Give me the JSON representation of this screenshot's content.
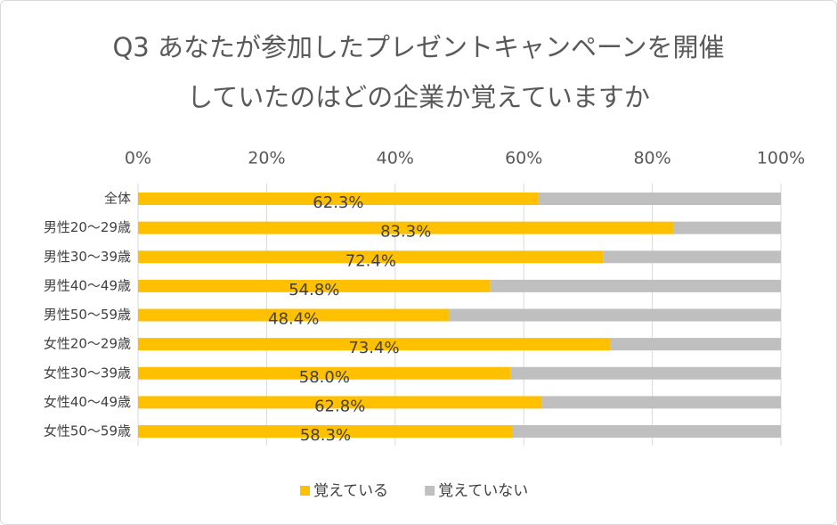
{
  "chart_data": {
    "type": "stacked-bar-horizontal",
    "title": [
      "Q3 あなたが参加したプレゼントキャンペーンを開催",
      "していたのはどの企業か覚えていますか"
    ],
    "categories": [
      "全体",
      "男性20～29歳",
      "男性30～39歳",
      "男性40～49歳",
      "男性50～59歳",
      "女性20～29歳",
      "女性30～39歳",
      "女性40～49歳",
      "女性50～59歳"
    ],
    "series": [
      {
        "name": "覚えている",
        "color": "#FFC000",
        "values": [
          62.3,
          83.3,
          72.4,
          54.8,
          48.4,
          73.4,
          58.0,
          62.8,
          58.3
        ],
        "value_labels": [
          "62.3%",
          "83.3%",
          "72.4%",
          "54.8%",
          "48.4%",
          "73.4%",
          "58.0%",
          "62.8%",
          "58.3%"
        ]
      },
      {
        "name": "覚えていない",
        "color": "#BFBFBF",
        "values": [
          37.7,
          16.7,
          27.6,
          45.2,
          51.6,
          26.6,
          42.0,
          37.2,
          41.7
        ]
      }
    ],
    "xlim": [
      0,
      100
    ],
    "xticks": [
      {
        "value": 0,
        "label": "0%"
      },
      {
        "value": 20,
        "label": "20%"
      },
      {
        "value": 40,
        "label": "40%"
      },
      {
        "value": 60,
        "label": "60%"
      },
      {
        "value": 80,
        "label": "80%"
      },
      {
        "value": 100,
        "label": "100%"
      }
    ],
    "grid": true,
    "legend": "bottom"
  }
}
